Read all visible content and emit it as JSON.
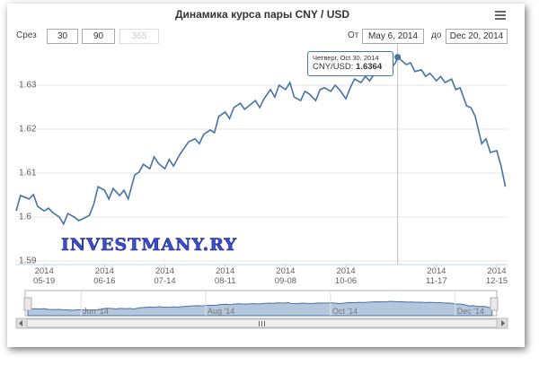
{
  "title": "Динамика курса пары CNY / USD",
  "range_selector": {
    "label": "Срез",
    "buttons": [
      "30",
      "90",
      "365"
    ],
    "from_label": "От",
    "from": "May 6, 2014",
    "to_label": "до",
    "to": "Dec 20, 2014"
  },
  "watermark": "INVESTMANY.RY",
  "chart_data": {
    "type": "line",
    "x": [
      "2014-05-06",
      "2014-05-08",
      "2014-05-12",
      "2014-05-14",
      "2014-05-16",
      "2014-05-19",
      "2014-05-21",
      "2014-05-23",
      "2014-05-26",
      "2014-05-28",
      "2014-05-30",
      "2014-06-02",
      "2014-06-04",
      "2014-06-06",
      "2014-06-09",
      "2014-06-11",
      "2014-06-13",
      "2014-06-16",
      "2014-06-18",
      "2014-06-20",
      "2014-06-23",
      "2014-06-25",
      "2014-06-27",
      "2014-06-30",
      "2014-07-02",
      "2014-07-04",
      "2014-07-07",
      "2014-07-09",
      "2014-07-11",
      "2014-07-14",
      "2014-07-16",
      "2014-07-18",
      "2014-07-21",
      "2014-07-23",
      "2014-07-25",
      "2014-07-28",
      "2014-07-30",
      "2014-08-01",
      "2014-08-04",
      "2014-08-06",
      "2014-08-08",
      "2014-08-11",
      "2014-08-13",
      "2014-08-15",
      "2014-08-18",
      "2014-08-20",
      "2014-08-22",
      "2014-08-25",
      "2014-08-27",
      "2014-08-29",
      "2014-09-01",
      "2014-09-03",
      "2014-09-05",
      "2014-09-08",
      "2014-09-10",
      "2014-09-12",
      "2014-09-15",
      "2014-09-17",
      "2014-09-19",
      "2014-09-22",
      "2014-09-24",
      "2014-09-26",
      "2014-09-29",
      "2014-10-01",
      "2014-10-03",
      "2014-10-06",
      "2014-10-08",
      "2014-10-10",
      "2014-10-13",
      "2014-10-15",
      "2014-10-17",
      "2014-10-20",
      "2014-10-22",
      "2014-10-24",
      "2014-10-27",
      "2014-10-29",
      "2014-10-30",
      "2014-11-03",
      "2014-11-05",
      "2014-11-07",
      "2014-11-10",
      "2014-11-12",
      "2014-11-14",
      "2014-11-17",
      "2014-11-19",
      "2014-11-21",
      "2014-11-24",
      "2014-11-26",
      "2014-11-28",
      "2014-12-01",
      "2014-12-03",
      "2014-12-05",
      "2014-12-08",
      "2014-12-10",
      "2014-12-12",
      "2014-12-15",
      "2014-12-17",
      "2014-12-19"
    ],
    "series": [
      {
        "color": "#4572a7",
        "values": [
          1.6014,
          1.6049,
          1.6041,
          1.6051,
          1.6024,
          1.6014,
          1.602,
          1.601,
          1.6,
          1.5984,
          1.6008,
          1.6,
          1.5992,
          1.5996,
          1.6004,
          1.6029,
          1.6069,
          1.6061,
          1.6041,
          1.6065,
          1.6049,
          1.6061,
          1.6041,
          1.6096,
          1.6102,
          1.612,
          1.611,
          1.6137,
          1.6122,
          1.611,
          1.6131,
          1.6116,
          1.6143,
          1.6157,
          1.6171,
          1.6178,
          1.6167,
          1.6188,
          1.6198,
          1.6192,
          1.6229,
          1.6239,
          1.6224,
          1.6249,
          1.6259,
          1.6245,
          1.6253,
          1.6265,
          1.6249,
          1.6269,
          1.629,
          1.6273,
          1.63,
          1.629,
          1.6306,
          1.6273,
          1.6265,
          1.6286,
          1.628,
          1.6265,
          1.629,
          1.6294,
          1.6286,
          1.63,
          1.629,
          1.6269,
          1.6294,
          1.6314,
          1.6306,
          1.632,
          1.631,
          1.6331,
          1.6341,
          1.6347,
          1.6339,
          1.6351,
          1.6364,
          1.6347,
          1.6351,
          1.6331,
          1.6335,
          1.632,
          1.6327,
          1.631,
          1.632,
          1.6306,
          1.6314,
          1.629,
          1.6294,
          1.6253,
          1.6249,
          1.6229,
          1.6167,
          1.6178,
          1.6147,
          1.6151,
          1.6116,
          1.6069
        ]
      }
    ],
    "xlim": [
      "2014-05-06",
      "2014-12-20"
    ],
    "ylim": [
      1.59,
      1.64
    ],
    "yticks": [
      1.59,
      1.6,
      1.61,
      1.62,
      1.63
    ],
    "xticks": [
      {
        "value": "2014-05-19",
        "label": "2014\n05-19"
      },
      {
        "value": "2014-06-16",
        "label": "2014\n06-16"
      },
      {
        "value": "2014-07-14",
        "label": "2014\n07-14"
      },
      {
        "value": "2014-08-11",
        "label": "2014\n08-11"
      },
      {
        "value": "2014-09-08",
        "label": "2014\n09-08"
      },
      {
        "value": "2014-10-06",
        "label": "2014\n10-06"
      },
      {
        "value": "2014-11-17",
        "label": "2014\n11-17"
      },
      {
        "value": "2014-12-15",
        "label": "2014\n12-15"
      }
    ],
    "grid": true,
    "tooltip": {
      "x": "2014-10-30",
      "header": "Четверг, Oct 30, 2014",
      "label": "CNY/USD:",
      "value": 1.6364
    },
    "navigator": {
      "ticks": [
        {
          "value": "2014-06-01",
          "label": "Jun '14"
        },
        {
          "value": "2014-08-01",
          "label": "Aug '14"
        },
        {
          "value": "2014-10-01",
          "label": "Oct '14"
        },
        {
          "value": "2014-12-01",
          "label": "Dec '14"
        }
      ]
    }
  }
}
